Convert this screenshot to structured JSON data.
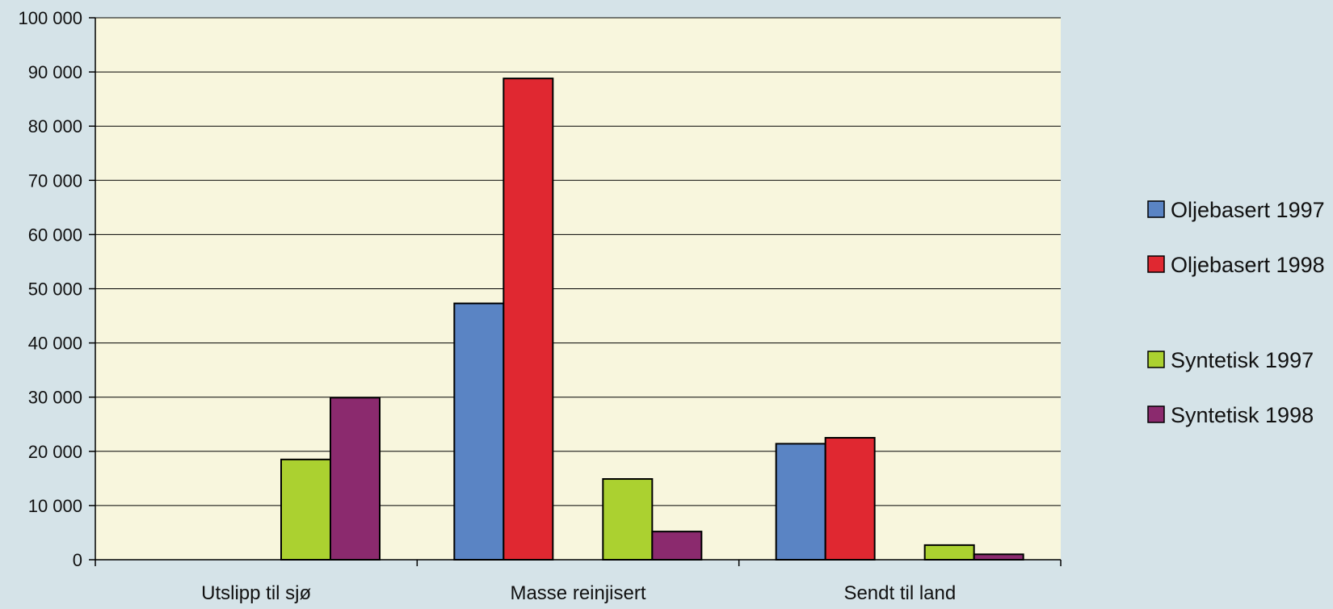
{
  "chart_data": {
    "type": "bar",
    "categories": [
      "Utslipp til sjø",
      "Masse reinjisert",
      "Sendt til land"
    ],
    "series": [
      {
        "name": "Oljebasert 1997",
        "color": "#5a84c4",
        "values": [
          0,
          47300,
          21400
        ]
      },
      {
        "name": "Oljebasert 1998",
        "color": "#e02831",
        "values": [
          0,
          88800,
          22500
        ]
      },
      {
        "name": "Syntetisk 1997",
        "color": "#abd130",
        "values": [
          18500,
          14900,
          2700
        ]
      },
      {
        "name": "Syntetisk 1998",
        "color": "#8b2a6e",
        "values": [
          29900,
          5200,
          1000
        ]
      }
    ],
    "ylim": [
      0,
      100000
    ],
    "yticks": [
      0,
      10000,
      20000,
      30000,
      40000,
      50000,
      60000,
      70000,
      80000,
      90000,
      100000
    ],
    "ytick_labels": [
      "0",
      "10 000",
      "20 000",
      "30 000",
      "40 000",
      "50 000",
      "60 000",
      "70 000",
      "80 000",
      "90 000",
      "100 000"
    ],
    "grid": true,
    "legend_position": "right",
    "plot_background": "#f8f6dd",
    "page_background": "#d5e3e8"
  }
}
